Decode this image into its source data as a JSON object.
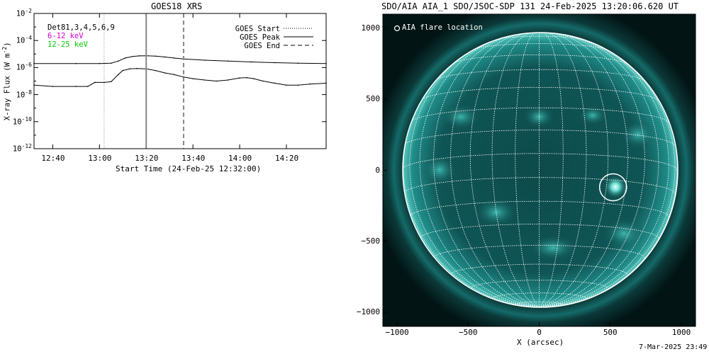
{
  "footer_date": "7-Mar-2025 23:49",
  "chart_data": [
    {
      "type": "line",
      "title": "GOES18 XRS",
      "xlabel": "Start Time (24-Feb-25 12:32:00)",
      "ylabel": "X-ray Flux (W m",
      "ylabel_exp": "-2",
      "ylabel_close": ")",
      "log_y": true,
      "x_range": [
        "12:32",
        "14:37"
      ],
      "x_ticks": [
        "12:40",
        "13:00",
        "13:20",
        "13:40",
        "14:00",
        "14:20"
      ],
      "y_range": [
        1e-12,
        0.01
      ],
      "y_ticks": [
        {
          "base": "10",
          "exp": "-2",
          "log": -2
        },
        {
          "base": "10",
          "exp": "-4",
          "log": -4
        },
        {
          "base": "10",
          "exp": "-6",
          "log": -6
        },
        {
          "base": "10",
          "exp": "-8",
          "log": -8
        },
        {
          "base": "10",
          "exp": "-10",
          "log": -10
        },
        {
          "base": "10",
          "exp": "-12",
          "log": -12
        }
      ],
      "legend_left": [
        {
          "text": "Det81,3,4,5,6,9",
          "color": "#000000"
        },
        {
          "text": "6-12 keV",
          "color": "#cc00cc"
        },
        {
          "text": "12-25 keV",
          "color": "#00cc00"
        }
      ],
      "legend_right": [
        {
          "text": "GOES Start",
          "style": "dotted"
        },
        {
          "text": "GOES Peak",
          "style": "solid"
        },
        {
          "text": "GOES End",
          "style": "dashed"
        }
      ],
      "markers": {
        "start": "13:02",
        "peak": "13:20",
        "end": "13:36"
      },
      "series": [
        {
          "channel": "long",
          "x": [
            "12:32",
            "12:50",
            "13:00",
            "13:05",
            "13:08",
            "13:11",
            "13:14",
            "13:17",
            "13:20",
            "13:24",
            "13:28",
            "13:32",
            "13:36",
            "13:45",
            "13:55",
            "14:05",
            "14:15",
            "14:25",
            "14:37"
          ],
          "y": [
            2e-06,
            2e-06,
            2e-06,
            2.1e-06,
            3e-06,
            5e-06,
            6.5e-06,
            7.3e-06,
            7.5e-06,
            7e-06,
            6e-06,
            5e-06,
            4.3e-06,
            3.5e-06,
            3e-06,
            2.6e-06,
            2.3e-06,
            2.1e-06,
            2e-06
          ]
        },
        {
          "channel": "short",
          "x": [
            "12:32",
            "12:40",
            "12:50",
            "12:55",
            "12:58",
            "13:02",
            "13:05",
            "13:08",
            "13:10",
            "13:13",
            "13:16",
            "13:20",
            "13:24",
            "13:28",
            "13:32",
            "13:36",
            "13:40",
            "13:45",
            "13:50",
            "13:55",
            "14:00",
            "14:03",
            "14:06",
            "14:10",
            "14:15",
            "14:20",
            "14:25",
            "14:30",
            "14:37"
          ],
          "y": [
            5e-08,
            4e-08,
            4e-08,
            4e-08,
            8e-08,
            8e-08,
            9e-08,
            3e-07,
            6e-07,
            8e-07,
            8.5e-07,
            8e-07,
            6e-07,
            4e-07,
            3e-07,
            2e-07,
            1.5e-07,
            1.2e-07,
            1e-07,
            1.2e-07,
            1.7e-07,
            1.8e-07,
            1.5e-07,
            1e-07,
            7e-08,
            5e-08,
            5e-08,
            6e-08,
            7e-08
          ]
        }
      ]
    },
    {
      "type": "image",
      "title": "SDO/AIA AIA_1 SDO/JSOC-SDP 131 24-Feb-2025 13:20:06.620 UT",
      "xlabel": "X (arcsec)",
      "x_range": [
        -1100,
        1100
      ],
      "y_range": [
        -1100,
        1100
      ],
      "x_ticks": [
        -1000,
        -500,
        0,
        500,
        1000
      ],
      "y_ticks": [
        -1000,
        -500,
        0,
        500,
        1000
      ],
      "x_tick_labels": [
        "−1000",
        "−500",
        "0",
        "500",
        "1000"
      ],
      "y_tick_labels": [
        "−1000",
        "−500",
        "0",
        "500",
        "1000"
      ],
      "solar_radius_arcsec": 970,
      "legend": "AIA flare location",
      "flare_location": {
        "x": 520,
        "y": -120,
        "radius": 95
      }
    }
  ]
}
